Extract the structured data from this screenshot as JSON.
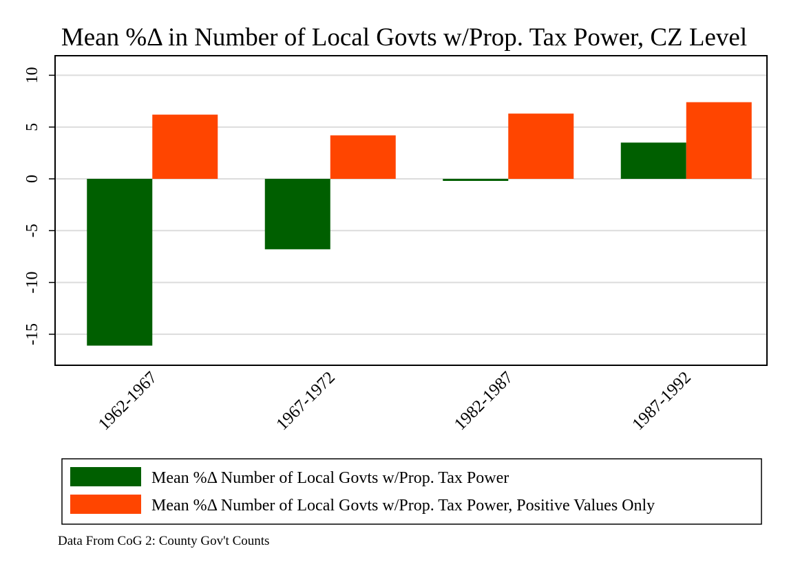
{
  "chart_data": {
    "type": "bar",
    "title": "Mean %Δ in Number of Local Govts w/Prop. Tax Power, CZ Level",
    "xlabel": "",
    "ylabel": "",
    "categories": [
      "1962-1967",
      "1967-1972",
      "1982-1987",
      "1987-1992"
    ],
    "series": [
      {
        "name": "Mean %Δ Number of Local Govts w/Prop. Tax Power",
        "color": "#005f00",
        "values": [
          -16.1,
          -6.8,
          -0.2,
          3.5
        ]
      },
      {
        "name": "Mean %Δ Number of Local Govts w/Prop. Tax Power, Positive Values Only",
        "color": "#ff4500",
        "values": [
          6.2,
          4.2,
          6.3,
          7.4
        ]
      }
    ],
    "ylim": [
      -18,
      12
    ],
    "yticks": [
      10,
      5,
      0,
      -5,
      -10,
      -15
    ],
    "ytick_labels": [
      "10",
      "5",
      "0",
      "-5",
      "-10",
      "-15"
    ],
    "grid": true,
    "legend_position": "bottom",
    "note": "Data From CoG 2: County Gov't Counts"
  }
}
